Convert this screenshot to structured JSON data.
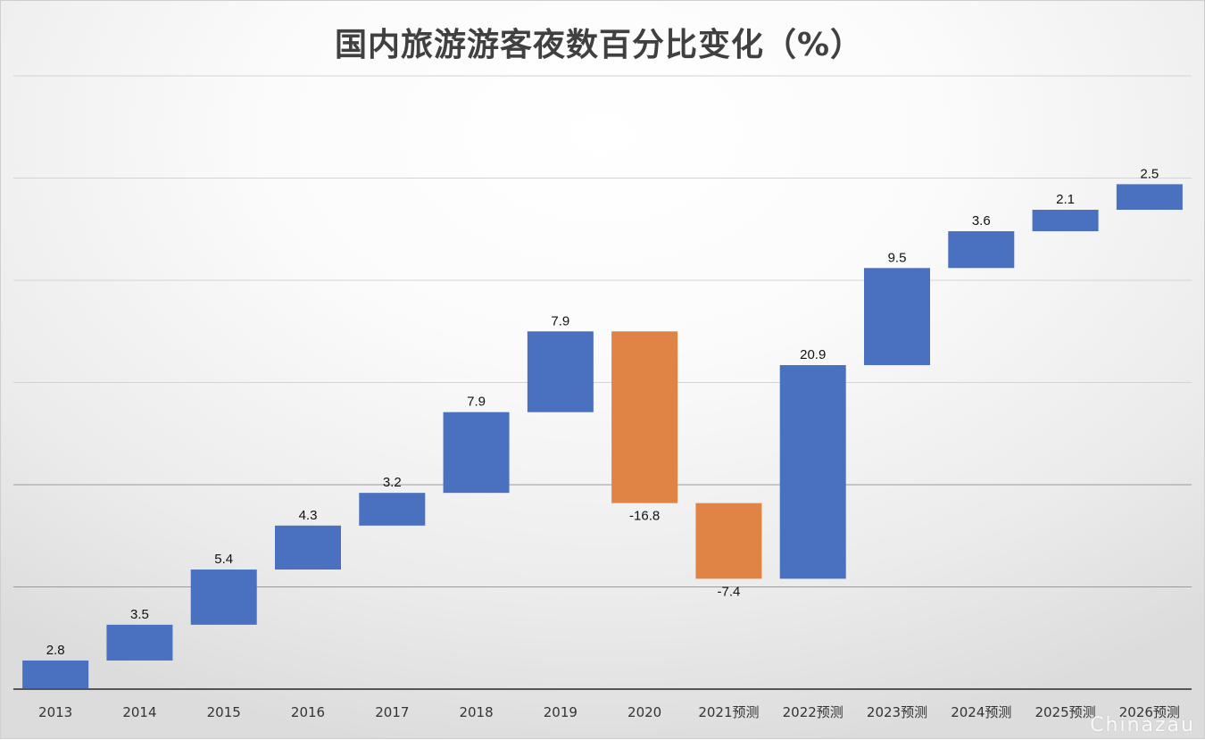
{
  "chart_data": {
    "type": "bar",
    "subtype": "waterfall",
    "title": "国内旅游游客夜数百分比变化（%）",
    "xlabel": "",
    "ylabel": "",
    "categories": [
      "2013",
      "2014",
      "2015",
      "2016",
      "2017",
      "2018",
      "2019",
      "2020",
      "2021预测",
      "2022预测",
      "2023预测",
      "2024预测",
      "2025预测",
      "2026预测"
    ],
    "values": [
      2.8,
      3.5,
      5.4,
      4.3,
      3.2,
      7.9,
      7.9,
      -16.8,
      -7.4,
      20.9,
      9.5,
      3.6,
      2.1,
      2.5
    ],
    "value_labels": [
      "2.8",
      "3.5",
      "5.4",
      "4.3",
      "3.2",
      "7.9",
      "7.9",
      "-16.8",
      "-7.4",
      "20.9",
      "9.5",
      "3.6",
      "2.1",
      "2.5"
    ],
    "ylim": [
      0,
      60
    ],
    "grid": true,
    "legend": "none",
    "colors": {
      "increase": "#4a70c0",
      "decrease": "#df8444"
    }
  },
  "watermark": "Chinazau"
}
